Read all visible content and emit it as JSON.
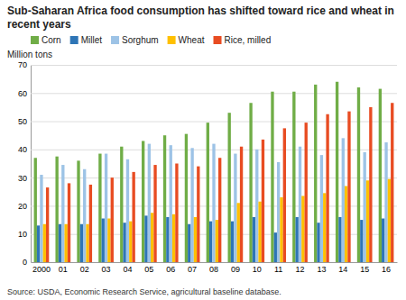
{
  "chart_data": {
    "type": "bar",
    "title": "Sub-Saharan Africa food consumption has shifted toward rice and wheat in recent years",
    "ylabel": "Million tons",
    "source": "Source: USDA, Economic Research Service, agricultural baseline database.",
    "categories": [
      "2000",
      "01",
      "02",
      "03",
      "04",
      "05",
      "06",
      "07",
      "08",
      "09",
      "10",
      "11",
      "12",
      "13",
      "14",
      "15",
      "16"
    ],
    "series": [
      {
        "name": "Corn",
        "color": "#70ad47",
        "values": [
          37,
          37.5,
          36,
          38.5,
          41,
          43,
          45,
          45.5,
          49.5,
          53,
          56.5,
          60.5,
          60.5,
          63,
          64,
          62,
          61.5
        ]
      },
      {
        "name": "Millet",
        "color": "#2e75b6",
        "values": [
          13,
          13.5,
          13.5,
          15.5,
          14,
          16.5,
          16,
          13.5,
          14.5,
          14.5,
          16,
          10.5,
          16,
          14,
          16,
          15,
          15.5
        ]
      },
      {
        "name": "Sorghum",
        "color": "#9dc3e6",
        "values": [
          31,
          34.5,
          33,
          38.5,
          36.5,
          42,
          41.5,
          40.5,
          42,
          38.5,
          40,
          35.5,
          41,
          38,
          44,
          39,
          42.5
        ]
      },
      {
        "name": "Wheat",
        "color": "#ffc000",
        "values": [
          13.5,
          13.5,
          13.5,
          15.5,
          14.5,
          17.5,
          17,
          16,
          15,
          21,
          21.5,
          23,
          23.5,
          24.5,
          27,
          29,
          29.5
        ]
      },
      {
        "name": "Rice, milled",
        "color": "#e84c22",
        "values": [
          26.5,
          28,
          27.5,
          30,
          32,
          34.5,
          35,
          34,
          37,
          41,
          43.5,
          47.5,
          49.5,
          52.5,
          53.5,
          55,
          56.5
        ]
      }
    ],
    "ylim": [
      0,
      70
    ],
    "yticks": [
      0,
      10,
      20,
      30,
      40,
      50,
      60,
      70
    ],
    "grid": true,
    "legend": "upper left"
  }
}
